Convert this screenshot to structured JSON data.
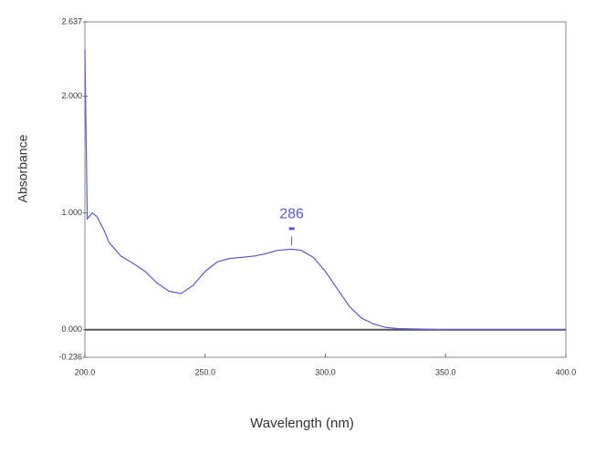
{
  "chart_data": {
    "type": "line",
    "xlabel": "Wavelength (nm)",
    "ylabel": "Absorbance",
    "x": [
      200,
      201,
      203,
      205,
      208,
      210,
      215,
      220,
      225,
      230,
      235,
      240,
      245,
      250,
      255,
      260,
      265,
      270,
      275,
      280,
      286,
      290,
      295,
      300,
      305,
      310,
      315,
      320,
      325,
      330,
      340,
      350,
      400
    ],
    "series": [
      {
        "name": "Absorbance",
        "color": "#5a5acf",
        "values": [
          2.4,
          0.95,
          1.0,
          0.97,
          0.85,
          0.75,
          0.63,
          0.57,
          0.5,
          0.4,
          0.33,
          0.31,
          0.38,
          0.5,
          0.58,
          0.61,
          0.62,
          0.63,
          0.65,
          0.68,
          0.69,
          0.68,
          0.62,
          0.5,
          0.35,
          0.2,
          0.1,
          0.05,
          0.02,
          0.01,
          0.005,
          0,
          0
        ]
      }
    ],
    "xlim": [
      200,
      400
    ],
    "xticks": [
      {
        "value": 200,
        "label": "200.0"
      },
      {
        "value": 250,
        "label": "250.0"
      },
      {
        "value": 300,
        "label": "300.0"
      },
      {
        "value": 350,
        "label": "350.0"
      },
      {
        "value": 400,
        "label": "400.0"
      }
    ],
    "ylim": [
      -0.236,
      2.637
    ],
    "yticks": [
      {
        "value": -0.236,
        "label": "-0.236"
      },
      {
        "value": 0,
        "label": "0.000"
      },
      {
        "value": 1,
        "label": "1.000"
      },
      {
        "value": 2,
        "label": "2.000"
      },
      {
        "value": 2.637,
        "label": "2.637"
      }
    ],
    "annotations": [
      {
        "text": "286",
        "x": 286
      }
    ]
  }
}
